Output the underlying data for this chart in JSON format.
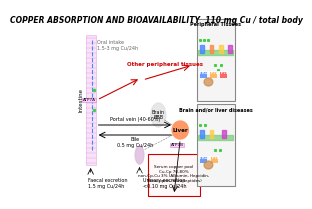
{
  "title": "COPPER ABSORPTION AND BIOAVAILABILITY  110 mg Cu / total body",
  "title_fontsize": 5.5,
  "bg_color": "#ffffff",
  "intestine_label": "Intestine",
  "oral_intake_label": "Oral intake\n1.5-3 mg Cu/24h",
  "faecal_label": "Faecal excretion\n1.5 mg Cu/24h",
  "urinary_label": "Urinary excretion\n<0.10 mg Cu/24h",
  "portal_label": "Portal vein (40-60%)",
  "bile_label": "Bile\n0.5 mg Cu/24h",
  "liver_label": "Liver",
  "brain_label": "Brain\nBBB",
  "other_tissues_label": "Other peripheral tissues",
  "serum_label": "Serum copper pool\nCu-Cp 70-80%\nnon-Cp-Cu 3% (Albumin, Hepcidin,\nTranscuprin, tetrapeptides)",
  "atp7b_label": "ATP7B",
  "atp7a_label": "ATP7A",
  "peripheral_tissue_title": "Peripheral Tissues",
  "brain_liver_title": "Brain and/or liver diseases"
}
